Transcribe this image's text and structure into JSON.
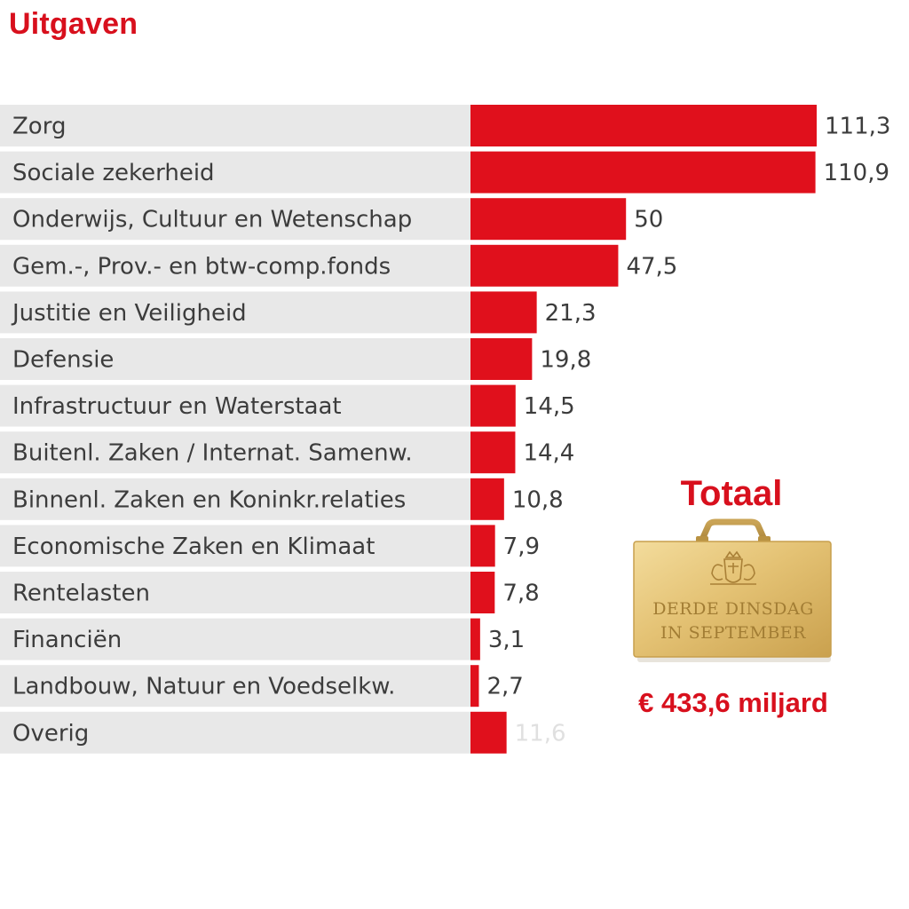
{
  "chart_data": {
    "type": "bar",
    "orientation": "horizontal",
    "title": "Uitgaven",
    "categories": [
      "Zorg",
      "Sociale zekerheid",
      "Onderwijs, Cultuur en Wetenschap",
      "Gem.-, Prov.- en btw-comp.fonds",
      "Justitie en Veiligheid",
      "Defensie",
      "Infrastructuur en Waterstaat",
      "Buitenl. Zaken / Internat. Samenw.",
      "Binnenl. Zaken en Koninkr.relaties",
      "Economische Zaken en Klimaat",
      "Rentelasten",
      "Financiën",
      "Landbouw, Natuur en Voedselkw.",
      "Overig"
    ],
    "values": [
      111.3,
      110.9,
      50,
      47.5,
      21.3,
      19.8,
      14.5,
      14.4,
      10.8,
      7.9,
      7.8,
      3.1,
      2.7,
      11.6
    ],
    "value_labels": [
      "111,3",
      "110,9",
      "50",
      "47,5",
      "21,3",
      "19,8",
      "14,5",
      "14,4",
      "10,8",
      "7,9",
      "7,8",
      "3,1",
      "2,7",
      "11,6"
    ],
    "xlim": [
      0,
      111.3
    ],
    "colors": {
      "bar": "#e0101c",
      "row_background": "#e8e8e8",
      "value_text": "#3c3c3c",
      "last_value_text": "#e0e0e0"
    }
  },
  "total": {
    "title": "Totaal",
    "briefcase_line1": "DERDE DINSDAG",
    "briefcase_line2": "IN SEPTEMBER",
    "value": "€ 433,6 miljard"
  }
}
